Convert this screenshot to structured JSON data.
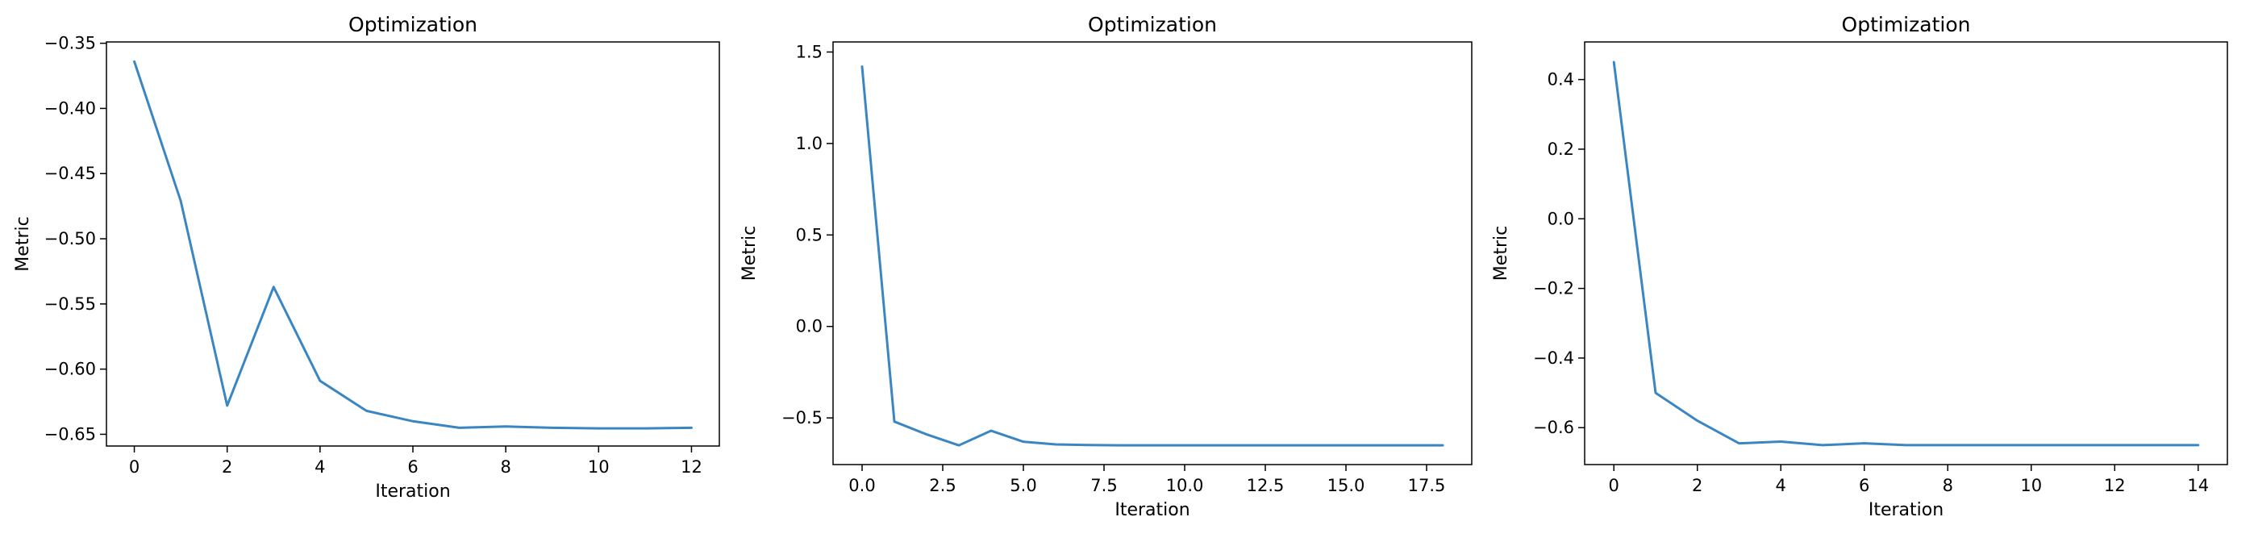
{
  "style": {
    "line_color": "#3a86c3",
    "axis_color": "#000000",
    "background": "#ffffff"
  },
  "chart_data": [
    {
      "type": "line",
      "title": "Optimization",
      "xlabel": "Iteration",
      "ylabel": "Metric",
      "xlim": [
        -0.6,
        12.6
      ],
      "ylim": [
        -0.659,
        -0.349
      ],
      "xticks": [
        0,
        2,
        4,
        6,
        8,
        10,
        12
      ],
      "xtick_labels": [
        "0",
        "2",
        "4",
        "6",
        "8",
        "10",
        "12"
      ],
      "yticks": [
        -0.65,
        -0.6,
        -0.55,
        -0.5,
        -0.45,
        -0.4,
        -0.35
      ],
      "ytick_labels": [
        "−0.65",
        "−0.60",
        "−0.55",
        "−0.50",
        "−0.45",
        "−0.40",
        "−0.35"
      ],
      "grid": false,
      "series": [
        {
          "x": [
            0,
            1,
            2,
            3,
            4,
            5,
            6,
            7,
            8,
            9,
            10,
            11,
            12
          ],
          "values": [
            -0.364,
            -0.471,
            -0.628,
            -0.537,
            -0.609,
            -0.632,
            -0.64,
            -0.645,
            -0.644,
            -0.645,
            -0.6455,
            -0.6455,
            -0.645
          ]
        }
      ]
    },
    {
      "type": "line",
      "title": "Optimization",
      "xlabel": "Iteration",
      "ylabel": "Metric",
      "xlim": [
        -0.9,
        18.9
      ],
      "ylim": [
        -0.755,
        1.555
      ],
      "xticks": [
        0,
        2.5,
        5,
        7.5,
        10,
        12.5,
        15,
        17.5
      ],
      "xtick_labels": [
        "0.0",
        "2.5",
        "5.0",
        "7.5",
        "10.0",
        "12.5",
        "15.0",
        "17.5"
      ],
      "yticks": [
        -0.5,
        0.0,
        0.5,
        1.0,
        1.5
      ],
      "ytick_labels": [
        "−0.5",
        "0.0",
        "0.5",
        "1.0",
        "1.5"
      ],
      "grid": false,
      "series": [
        {
          "x": [
            0,
            1,
            2,
            3,
            4,
            5,
            6,
            7,
            8,
            9,
            10,
            11,
            12,
            13,
            14,
            15,
            16,
            17,
            18
          ],
          "values": [
            1.42,
            -0.52,
            -0.59,
            -0.65,
            -0.57,
            -0.63,
            -0.645,
            -0.648,
            -0.65,
            -0.65,
            -0.65,
            -0.65,
            -0.65,
            -0.65,
            -0.65,
            -0.65,
            -0.65,
            -0.65,
            -0.65
          ]
        }
      ]
    },
    {
      "type": "line",
      "title": "Optimization",
      "xlabel": "Iteration",
      "ylabel": "Metric",
      "xlim": [
        -0.7,
        14.7
      ],
      "ylim": [
        -0.706,
        0.508
      ],
      "xticks": [
        0,
        2,
        4,
        6,
        8,
        10,
        12,
        14
      ],
      "xtick_labels": [
        "0",
        "2",
        "4",
        "6",
        "8",
        "10",
        "12",
        "14"
      ],
      "yticks": [
        -0.6,
        -0.4,
        -0.2,
        0.0,
        0.2,
        0.4
      ],
      "ytick_labels": [
        "−0.6",
        "−0.4",
        "−0.2",
        "0.0",
        "0.2",
        "0.4"
      ],
      "grid": false,
      "series": [
        {
          "x": [
            0,
            1,
            2,
            3,
            4,
            5,
            6,
            7,
            8,
            9,
            10,
            11,
            12,
            13,
            14
          ],
          "values": [
            0.45,
            -0.5,
            -0.58,
            -0.645,
            -0.64,
            -0.65,
            -0.645,
            -0.65,
            -0.65,
            -0.65,
            -0.65,
            -0.65,
            -0.65,
            -0.65,
            -0.65
          ]
        }
      ]
    }
  ]
}
